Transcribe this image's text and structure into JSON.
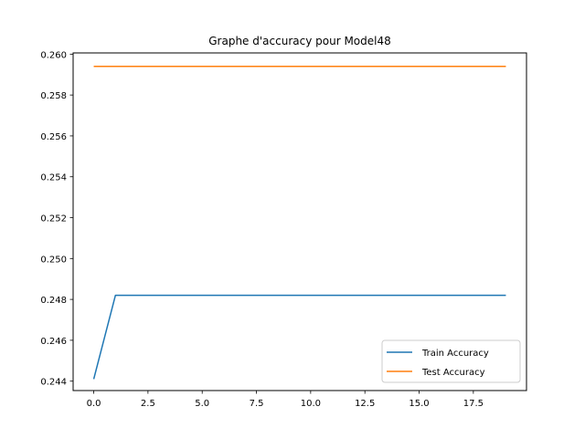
{
  "chart_data": {
    "type": "line",
    "title": "Graphe d'accuracy pour Model48",
    "xlabel": "",
    "ylabel": "",
    "xlim": [
      -0.95,
      19.95
    ],
    "ylim": [
      0.24354,
      0.26006
    ],
    "xticks": [
      0,
      2.5,
      5,
      7.5,
      10,
      12.5,
      15,
      17.5
    ],
    "xtick_labels": [
      "0.0",
      "2.5",
      "5.0",
      "7.5",
      "10.0",
      "12.5",
      "15.0",
      "17.5"
    ],
    "yticks": [
      0.244,
      0.246,
      0.248,
      0.25,
      0.252,
      0.254,
      0.256,
      0.258,
      0.26
    ],
    "ytick_labels": [
      "0.244",
      "0.246",
      "0.248",
      "0.250",
      "0.252",
      "0.254",
      "0.256",
      "0.258",
      "0.260"
    ],
    "grid": false,
    "legend_position": "bottom-right",
    "series": [
      {
        "name": "Train Accuracy",
        "color": "#1f77b4",
        "x": [
          0,
          1,
          2,
          3,
          4,
          5,
          6,
          7,
          8,
          9,
          10,
          11,
          12,
          13,
          14,
          15,
          16,
          17,
          18,
          19
        ],
        "values": [
          0.2441,
          0.2482,
          0.2482,
          0.2482,
          0.2482,
          0.2482,
          0.2482,
          0.2482,
          0.2482,
          0.2482,
          0.2482,
          0.2482,
          0.2482,
          0.2482,
          0.2482,
          0.2482,
          0.2482,
          0.2482,
          0.2482,
          0.2482
        ]
      },
      {
        "name": "Test Accuracy",
        "color": "#ff7f0e",
        "x": [
          0,
          1,
          2,
          3,
          4,
          5,
          6,
          7,
          8,
          9,
          10,
          11,
          12,
          13,
          14,
          15,
          16,
          17,
          18,
          19
        ],
        "values": [
          0.2594,
          0.2594,
          0.2594,
          0.2594,
          0.2594,
          0.2594,
          0.2594,
          0.2594,
          0.2594,
          0.2594,
          0.2594,
          0.2594,
          0.2594,
          0.2594,
          0.2594,
          0.2594,
          0.2594,
          0.2594,
          0.2594,
          0.2594
        ]
      }
    ]
  }
}
